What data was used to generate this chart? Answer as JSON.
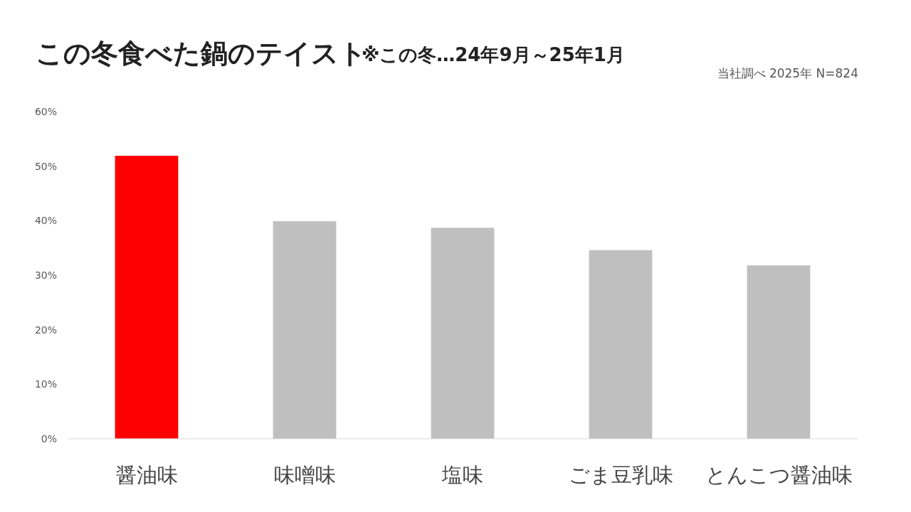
{
  "chart_data": {
    "type": "bar",
    "title": "この冬食べた鍋のテイスト",
    "subtitle": "※この冬…24年9月～25年1月",
    "annotations": [
      "当社調べ  2025年  N=824"
    ],
    "categories": [
      "醤油味",
      "味噌味",
      "塩味",
      "ごま豆乳味",
      "とんこつ醤油味"
    ],
    "values": [
      51.9,
      39.9,
      38.7,
      34.6,
      31.8
    ],
    "colors": [
      "#ff0000",
      "#bfbfbf",
      "#bfbfbf",
      "#bfbfbf",
      "#bfbfbf"
    ],
    "ylim": [
      0,
      60
    ],
    "yticks": [
      {
        "value": 0,
        "label": "0%"
      },
      {
        "value": 10,
        "label": "10%"
      },
      {
        "value": 20,
        "label": "20%"
      },
      {
        "value": 30,
        "label": "30%"
      },
      {
        "value": 40,
        "label": "40%"
      },
      {
        "value": 50,
        "label": "50%"
      },
      {
        "value": 60,
        "label": "60%"
      }
    ],
    "grid": false
  }
}
